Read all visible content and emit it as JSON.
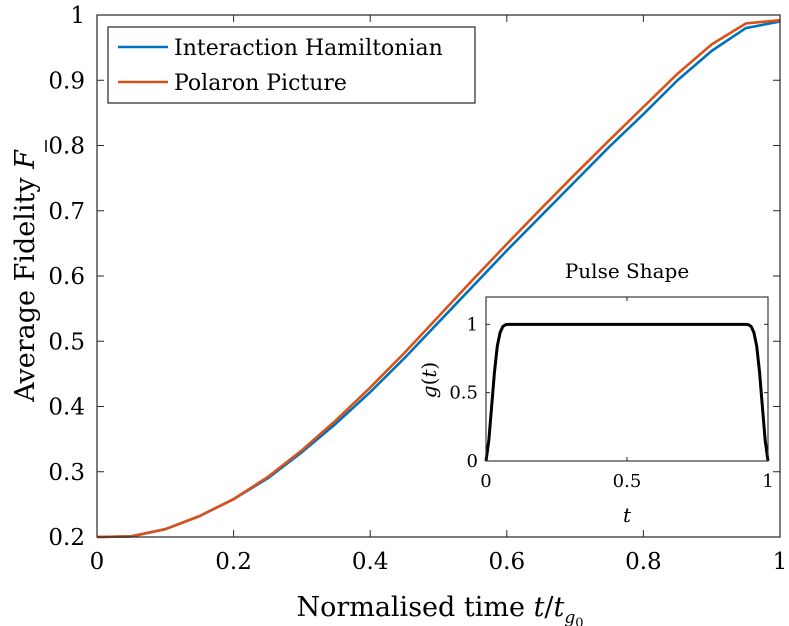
{
  "chart_data": [
    {
      "type": "line",
      "title": "",
      "xlabel": "Normalised time",
      "xlabel_math": {
        "t": "t",
        "slash": "/",
        "tg": "t",
        "sub": "g",
        "sub2": "0"
      },
      "ylabel": "Average Fidelity",
      "ylabel_math": "F",
      "xlim": [
        0,
        1
      ],
      "ylim": [
        0.2,
        1
      ],
      "xticks": [
        0,
        0.2,
        0.4,
        0.6,
        0.8,
        1
      ],
      "xtick_labels": [
        "0",
        "0.2",
        "0.4",
        "0.6",
        "0.8",
        "1"
      ],
      "yticks": [
        0.2,
        0.3,
        0.4,
        0.5,
        0.6,
        0.7,
        0.8,
        0.9,
        1
      ],
      "ytick_labels": [
        "0.2",
        "0.3",
        "0.4",
        "0.5",
        "0.6",
        "0.7",
        "0.8",
        "0.9",
        "1"
      ],
      "legend_position": "top-left",
      "series": [
        {
          "name": "Interaction Hamiltonian",
          "color": "#0072BD",
          "x": [
            0,
            0.05,
            0.1,
            0.15,
            0.2,
            0.25,
            0.3,
            0.35,
            0.4,
            0.45,
            0.5,
            0.55,
            0.6,
            0.65,
            0.7,
            0.75,
            0.8,
            0.85,
            0.9,
            0.95,
            1.0
          ],
          "y": [
            0.2,
            0.201,
            0.212,
            0.232,
            0.258,
            0.29,
            0.33,
            0.374,
            0.422,
            0.474,
            0.529,
            0.584,
            0.639,
            0.692,
            0.745,
            0.798,
            0.848,
            0.9,
            0.945,
            0.98,
            0.99
          ]
        },
        {
          "name": "Polaron Picture",
          "color": "#D95319",
          "x": [
            0,
            0.05,
            0.1,
            0.15,
            0.2,
            0.25,
            0.3,
            0.35,
            0.4,
            0.45,
            0.5,
            0.55,
            0.6,
            0.65,
            0.7,
            0.75,
            0.8,
            0.85,
            0.9,
            0.95,
            1.0
          ],
          "y": [
            0.2,
            0.201,
            0.212,
            0.232,
            0.258,
            0.292,
            0.333,
            0.379,
            0.429,
            0.482,
            0.538,
            0.594,
            0.649,
            0.703,
            0.756,
            0.808,
            0.859,
            0.91,
            0.955,
            0.987,
            0.992
          ]
        }
      ]
    },
    {
      "type": "line",
      "title": "Pulse Shape",
      "xlabel": "t",
      "ylabel": "g(t)",
      "ylabel_parts": {
        "g": "g",
        "open": "(",
        "t": "t",
        "close": ")"
      },
      "xlim": [
        0,
        1
      ],
      "ylim": [
        0,
        1.2
      ],
      "xticks": [
        0,
        0.5,
        1
      ],
      "xtick_labels": [
        "0",
        "0.5",
        "1"
      ],
      "yticks": [
        0,
        0.5,
        1
      ],
      "ytick_labels": [
        "0",
        "0.5",
        "1"
      ],
      "series": [
        {
          "name": "g(t)",
          "color": "#000000",
          "x": [
            0,
            0.01,
            0.02,
            0.03,
            0.04,
            0.05,
            0.06,
            0.07,
            0.08,
            0.1,
            0.2,
            0.4,
            0.6,
            0.8,
            0.9,
            0.92,
            0.93,
            0.94,
            0.95,
            0.96,
            0.97,
            0.98,
            0.99,
            1.0
          ],
          "y": [
            0,
            0.15,
            0.4,
            0.65,
            0.84,
            0.94,
            0.985,
            0.998,
            1.0,
            1.0,
            1.0,
            1.0,
            1.0,
            1.0,
            1.0,
            1.0,
            0.998,
            0.985,
            0.94,
            0.84,
            0.65,
            0.4,
            0.15,
            0
          ]
        }
      ]
    }
  ]
}
